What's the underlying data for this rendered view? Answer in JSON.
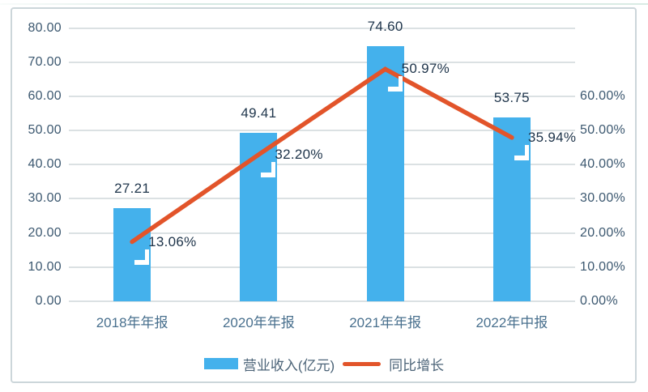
{
  "chart_data": {
    "type": "bar",
    "subtype": "bar-line-combo",
    "categories": [
      "2018年年报",
      "2020年年报",
      "2021年年报",
      "2022年中报"
    ],
    "series": [
      {
        "name": "营业收入(亿元)",
        "type": "bar",
        "axis": "left",
        "values": [
          27.21,
          49.41,
          74.6,
          53.75
        ],
        "value_labels": [
          "27.21",
          "49.41",
          "74.60",
          "53.75"
        ],
        "color": "#44b1ec"
      },
      {
        "name": "同比增长",
        "type": "line",
        "axis": "right",
        "values": [
          13.06,
          32.2,
          50.97,
          35.94
        ],
        "value_labels": [
          "13.06%",
          "32.20%",
          "50.97%",
          "35.94%"
        ],
        "color": "#e2542a"
      }
    ],
    "left_axis": {
      "min": 0,
      "max": 80,
      "step": 10,
      "tick_labels": [
        "0.00",
        "10.00",
        "20.00",
        "30.00",
        "40.00",
        "50.00",
        "60.00",
        "70.00",
        "80.00"
      ]
    },
    "right_axis": {
      "min": 0,
      "max": 60,
      "step": 10,
      "tick_labels": [
        "0.00%",
        "10.00%",
        "20.00%",
        "30.00%",
        "40.00%",
        "50.00%",
        "60.00%"
      ]
    },
    "grid": true,
    "legend_position": "bottom"
  },
  "colors": {
    "bar": "#44b1ec",
    "line": "#e2542a",
    "gridline": "#dbe1e3",
    "frame_border": "#ccd6da",
    "background": "#ffffff"
  }
}
